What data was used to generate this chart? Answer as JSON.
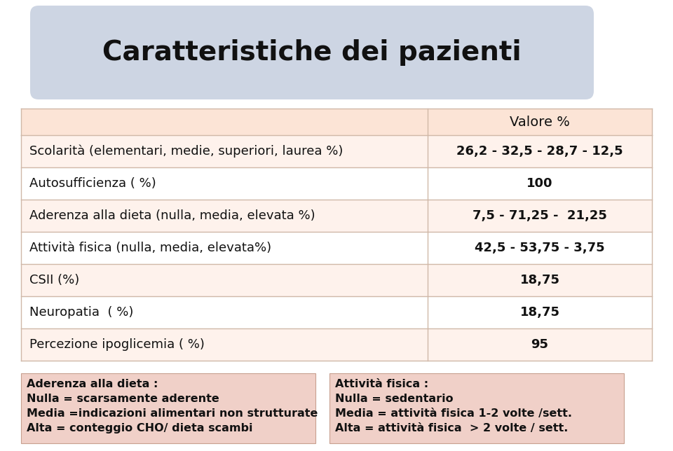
{
  "title": "Caratteristiche dei pazienti",
  "title_bg": "#cdd5e3",
  "table_header": "Valore %",
  "table_header_bg": "#fce4d6",
  "table_row_bg_light": "#fef2ec",
  "table_row_bg_white": "#ffffff",
  "table_border_color": "#d0b8a8",
  "rows": [
    [
      "Scolarità (elementari, medie, superiori, laurea %)",
      "26,2 - 32,5 - 28,7 - 12,5"
    ],
    [
      "Autosufficienza ( %)",
      "100"
    ],
    [
      "Aderenza alla dieta (nulla, media, elevata %)",
      "7,5 - 71,25 -  21,25"
    ],
    [
      "Attività fisica (nulla, media, elevata%)",
      "42,5 - 53,75 - 3,75"
    ],
    [
      "CSII (%)",
      "18,75"
    ],
    [
      "Neuropatia  ( %)",
      "18,75"
    ],
    [
      "Percezione ipoglicemia ( %)",
      "95"
    ]
  ],
  "note_bg": "#f0d0c8",
  "note_border": "#c8a090",
  "note_left_title": "Aderenza alla dieta :",
  "note_left_lines": [
    "Nulla = scarsamente aderente",
    "Media =indicazioni alimentari non strutturate",
    "Alta = conteggio CHO/ dieta scambi"
  ],
  "note_right_title": "Attività fisica :",
  "note_right_lines": [
    "Nulla = sedentario",
    "Media = attività fisica 1-2 volte /sett.",
    "Alta = attività fisica  > 2 volte / sett."
  ],
  "bg_color": "#ffffff",
  "text_color": "#111111"
}
